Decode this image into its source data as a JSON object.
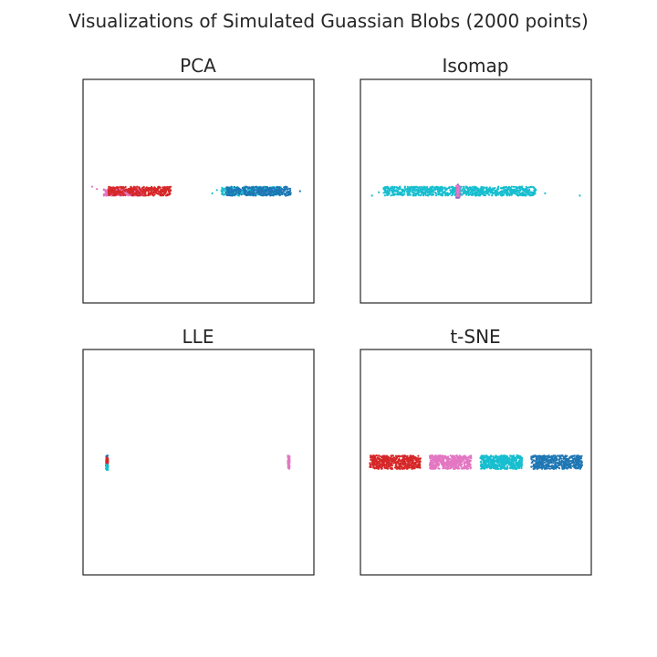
{
  "figure": {
    "title": "Visualizations of Simulated Guassian Blobs (2000 points)"
  },
  "colors": {
    "red": "#d62728",
    "pink": "#e377c2",
    "cyan": "#17becf",
    "blue": "#1f77b4",
    "purple": "#9467bd"
  },
  "chart_data": [
    {
      "type": "scatter",
      "title": "PCA",
      "xlim": [
        0,
        100
      ],
      "ylim": [
        0,
        100
      ],
      "grid": false,
      "ticks": false,
      "clusters": [
        {
          "color": "pink",
          "count": 330,
          "x": [
            9,
            26
          ],
          "y": [
            48,
            51
          ],
          "outliers": [
            [
              4,
              52
            ],
            [
              6,
              51
            ]
          ]
        },
        {
          "color": "red",
          "count": 370,
          "x": [
            11,
            38
          ],
          "y": [
            48,
            52
          ],
          "outliers": [
            [
              38,
              50.5
            ]
          ]
        },
        {
          "color": "cyan",
          "count": 330,
          "x": [
            60,
            86
          ],
          "y": [
            48,
            52
          ],
          "outliers": [
            [
              56,
              49
            ],
            [
              58,
              50.5
            ]
          ]
        },
        {
          "color": "blue",
          "count": 370,
          "x": [
            62,
            90
          ],
          "y": [
            48,
            52
          ],
          "outliers": [
            [
              94,
              50
            ]
          ]
        }
      ]
    },
    {
      "type": "scatter",
      "title": "Isomap",
      "xlim": [
        0,
        100
      ],
      "ylim": [
        0,
        100
      ],
      "grid": false,
      "ticks": false,
      "clusters": [
        {
          "color": "cyan",
          "count": 900,
          "x": [
            10,
            76
          ],
          "y": [
            48,
            52
          ],
          "outliers": [
            [
              5,
              48
            ],
            [
              8,
              49.5
            ],
            [
              80,
              49
            ],
            [
              95,
              48
            ]
          ]
        },
        {
          "color": "purple",
          "count": 50,
          "x": [
            41.5,
            43
          ],
          "y": [
            47,
            53
          ],
          "outliers": []
        },
        {
          "color": "pink",
          "count": 40,
          "x": [
            41.5,
            43
          ],
          "y": [
            47.5,
            52.5
          ],
          "outliers": []
        }
      ]
    },
    {
      "type": "scatter",
      "title": "LLE",
      "xlim": [
        0,
        100
      ],
      "ylim": [
        0,
        100
      ],
      "grid": false,
      "ticks": false,
      "clusters": [
        {
          "color": "blue",
          "count": 60,
          "x": [
            10,
            10.8
          ],
          "y": [
            47,
            53
          ],
          "outliers": []
        },
        {
          "color": "red",
          "count": 60,
          "x": [
            10,
            10.8
          ],
          "y": [
            48,
            52
          ],
          "outliers": []
        },
        {
          "color": "cyan",
          "count": 40,
          "x": [
            10,
            10.8
          ],
          "y": [
            46.5,
            49
          ],
          "outliers": []
        },
        {
          "color": "pink",
          "count": 80,
          "x": [
            88.7,
            89.5
          ],
          "y": [
            47,
            53
          ],
          "outliers": []
        }
      ]
    },
    {
      "type": "scatter",
      "title": "t-SNE",
      "xlim": [
        0,
        100
      ],
      "ylim": [
        0,
        100
      ],
      "grid": false,
      "ticks": false,
      "clusters": [
        {
          "color": "red",
          "count": 500,
          "x": [
            4,
            26
          ],
          "y": [
            47,
            53
          ],
          "outliers": []
        },
        {
          "color": "pink",
          "count": 500,
          "x": [
            30,
            48
          ],
          "y": [
            47,
            53
          ],
          "outliers": []
        },
        {
          "color": "cyan",
          "count": 500,
          "x": [
            52,
            70
          ],
          "y": [
            47,
            53
          ],
          "outliers": []
        },
        {
          "color": "blue",
          "count": 500,
          "x": [
            74,
            96
          ],
          "y": [
            47,
            53
          ],
          "outliers": []
        }
      ]
    }
  ]
}
